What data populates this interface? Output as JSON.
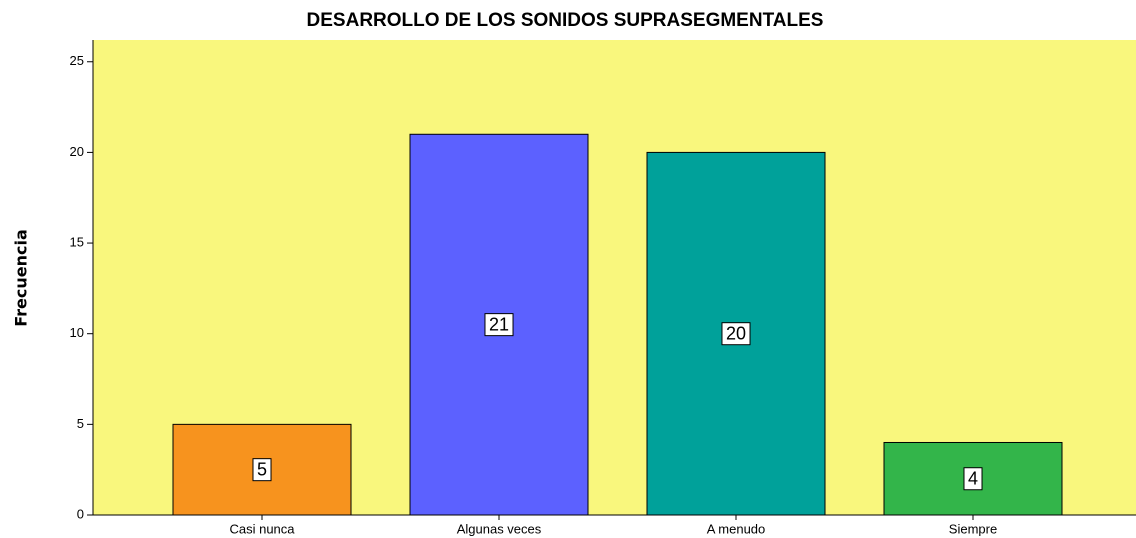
{
  "chart_data": {
    "type": "bar",
    "title": "DESARROLLO DE LOS SONIDOS SUPRASEGMENTALES",
    "y_label": "Frecuencia",
    "categories": [
      "Casi nunca",
      "Algunas veces",
      "A menudo",
      "Siempre"
    ],
    "values": [
      5,
      21,
      20,
      4
    ],
    "colors": [
      "#f7931e",
      "#5c61ff",
      "#00a19a",
      "#33b54a"
    ],
    "ylim": [
      0,
      26.2
    ],
    "yticks": [
      0,
      5,
      10,
      15,
      20,
      25
    ],
    "grid": false,
    "plot_background": "#f9f77d"
  }
}
